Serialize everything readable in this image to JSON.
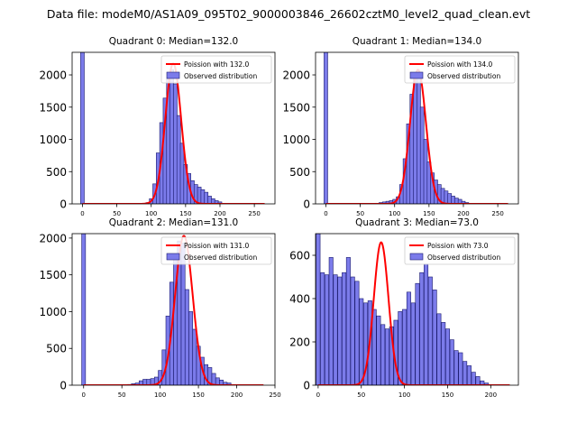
{
  "figure": {
    "suptitle": "Data file: modeM0/AS1A09_095T02_9000003846_26602cztM0_level2_quad_clean.evt"
  },
  "colors": {
    "histogram_fill": "#7b7bea",
    "histogram_edge": "#1a1a6e",
    "poisson_line": "#ff0000"
  },
  "chart_data": [
    {
      "type": "bar",
      "title": "Quadrant 0: Median=132.0",
      "xlim": [
        -15,
        280
      ],
      "ylim": [
        0,
        2350
      ],
      "xticks": [
        0,
        50,
        100,
        150,
        200,
        250
      ],
      "yticks": [
        0,
        500,
        1000,
        1500,
        2000
      ],
      "bin_width": 5.3,
      "bins": [
        {
          "x": 0,
          "y": 2350
        },
        {
          "x": 95,
          "y": 20
        },
        {
          "x": 100,
          "y": 80
        },
        {
          "x": 105,
          "y": 310
        },
        {
          "x": 110,
          "y": 790
        },
        {
          "x": 115,
          "y": 1260
        },
        {
          "x": 120,
          "y": 1640
        },
        {
          "x": 125,
          "y": 1940
        },
        {
          "x": 130,
          "y": 2080
        },
        {
          "x": 135,
          "y": 1860
        },
        {
          "x": 140,
          "y": 1370
        },
        {
          "x": 145,
          "y": 940
        },
        {
          "x": 150,
          "y": 610
        },
        {
          "x": 155,
          "y": 470
        },
        {
          "x": 160,
          "y": 360
        },
        {
          "x": 165,
          "y": 300
        },
        {
          "x": 170,
          "y": 260
        },
        {
          "x": 175,
          "y": 220
        },
        {
          "x": 180,
          "y": 180
        },
        {
          "x": 185,
          "y": 120
        },
        {
          "x": 190,
          "y": 80
        },
        {
          "x": 195,
          "y": 50
        },
        {
          "x": 200,
          "y": 30
        }
      ],
      "poisson": {
        "mean": 132.0,
        "peak": 2180,
        "x_range": [
          0,
          265
        ]
      },
      "legend": {
        "position": "upper-right",
        "entries": [
          "Poission with 132.0",
          "Observed distribution"
        ]
      }
    },
    {
      "type": "bar",
      "title": "Quadrant 1: Median=134.0",
      "xlim": [
        -15,
        280
      ],
      "ylim": [
        0,
        2350
      ],
      "xticks": [
        0,
        50,
        100,
        150,
        200,
        250
      ],
      "yticks": [
        0,
        500,
        1000,
        1500,
        2000
      ],
      "bin_width": 5.3,
      "bins": [
        {
          "x": 0,
          "y": 2350
        },
        {
          "x": 75,
          "y": 10
        },
        {
          "x": 80,
          "y": 20
        },
        {
          "x": 85,
          "y": 30
        },
        {
          "x": 90,
          "y": 40
        },
        {
          "x": 95,
          "y": 50
        },
        {
          "x": 100,
          "y": 70
        },
        {
          "x": 105,
          "y": 110
        },
        {
          "x": 110,
          "y": 300
        },
        {
          "x": 115,
          "y": 700
        },
        {
          "x": 120,
          "y": 1240
        },
        {
          "x": 125,
          "y": 1700
        },
        {
          "x": 130,
          "y": 2000
        },
        {
          "x": 135,
          "y": 1960
        },
        {
          "x": 140,
          "y": 1500
        },
        {
          "x": 145,
          "y": 1000
        },
        {
          "x": 150,
          "y": 650
        },
        {
          "x": 155,
          "y": 480
        },
        {
          "x": 160,
          "y": 370
        },
        {
          "x": 165,
          "y": 300
        },
        {
          "x": 170,
          "y": 240
        },
        {
          "x": 175,
          "y": 200
        },
        {
          "x": 180,
          "y": 160
        },
        {
          "x": 185,
          "y": 120
        },
        {
          "x": 190,
          "y": 90
        },
        {
          "x": 195,
          "y": 70
        },
        {
          "x": 200,
          "y": 40
        },
        {
          "x": 205,
          "y": 20
        }
      ],
      "poisson": {
        "mean": 134.0,
        "peak": 2080,
        "x_range": [
          0,
          265
        ]
      },
      "legend": {
        "position": "upper-right",
        "entries": [
          "Poission with 134.0",
          "Observed distribution"
        ]
      }
    },
    {
      "type": "bar",
      "title": "Quadrant 2: Median=131.0",
      "xlim": [
        -15,
        250
      ],
      "ylim": [
        0,
        2060
      ],
      "xticks": [
        0,
        50,
        100,
        150,
        200,
        250
      ],
      "yticks": [
        0,
        500,
        1000,
        1500,
        2000
      ],
      "bin_width": 5.0,
      "bins": [
        {
          "x": 0,
          "y": 2060
        },
        {
          "x": 60,
          "y": 10
        },
        {
          "x": 65,
          "y": 20
        },
        {
          "x": 70,
          "y": 30
        },
        {
          "x": 75,
          "y": 60
        },
        {
          "x": 80,
          "y": 80
        },
        {
          "x": 85,
          "y": 80
        },
        {
          "x": 90,
          "y": 90
        },
        {
          "x": 95,
          "y": 110
        },
        {
          "x": 100,
          "y": 200
        },
        {
          "x": 105,
          "y": 480
        },
        {
          "x": 110,
          "y": 940
        },
        {
          "x": 115,
          "y": 1400
        },
        {
          "x": 120,
          "y": 1720
        },
        {
          "x": 125,
          "y": 1960
        },
        {
          "x": 130,
          "y": 1930
        },
        {
          "x": 135,
          "y": 1300
        },
        {
          "x": 140,
          "y": 1000
        },
        {
          "x": 145,
          "y": 760
        },
        {
          "x": 150,
          "y": 530
        },
        {
          "x": 155,
          "y": 380
        },
        {
          "x": 160,
          "y": 280
        },
        {
          "x": 165,
          "y": 240
        },
        {
          "x": 170,
          "y": 160
        },
        {
          "x": 175,
          "y": 100
        },
        {
          "x": 180,
          "y": 70
        },
        {
          "x": 185,
          "y": 40
        },
        {
          "x": 190,
          "y": 30
        }
      ],
      "poisson": {
        "mean": 131.0,
        "peak": 2030,
        "x_range": [
          0,
          235
        ]
      },
      "legend": {
        "position": "upper-right",
        "entries": [
          "Poission with 131.0",
          "Observed distribution"
        ]
      }
    },
    {
      "type": "bar",
      "title": "Quadrant 3: Median=73.0",
      "xlim": [
        -3,
        232
      ],
      "ylim": [
        0,
        700
      ],
      "xticks": [
        0,
        50,
        100,
        150,
        200
      ],
      "yticks": [
        0,
        200,
        400,
        600
      ],
      "bin_width": 4.6,
      "bins": [
        {
          "x": 0,
          "y": 700
        },
        {
          "x": 5,
          "y": 520
        },
        {
          "x": 10,
          "y": 510
        },
        {
          "x": 15,
          "y": 590
        },
        {
          "x": 20,
          "y": 510
        },
        {
          "x": 25,
          "y": 500
        },
        {
          "x": 30,
          "y": 520
        },
        {
          "x": 35,
          "y": 590
        },
        {
          "x": 40,
          "y": 500
        },
        {
          "x": 45,
          "y": 480
        },
        {
          "x": 50,
          "y": 400
        },
        {
          "x": 55,
          "y": 380
        },
        {
          "x": 60,
          "y": 390
        },
        {
          "x": 65,
          "y": 350
        },
        {
          "x": 70,
          "y": 320
        },
        {
          "x": 75,
          "y": 280
        },
        {
          "x": 80,
          "y": 260
        },
        {
          "x": 85,
          "y": 270
        },
        {
          "x": 90,
          "y": 300
        },
        {
          "x": 95,
          "y": 340
        },
        {
          "x": 100,
          "y": 350
        },
        {
          "x": 105,
          "y": 430
        },
        {
          "x": 110,
          "y": 380
        },
        {
          "x": 115,
          "y": 470
        },
        {
          "x": 120,
          "y": 520
        },
        {
          "x": 125,
          "y": 560
        },
        {
          "x": 130,
          "y": 500
        },
        {
          "x": 135,
          "y": 440
        },
        {
          "x": 140,
          "y": 330
        },
        {
          "x": 145,
          "y": 290
        },
        {
          "x": 150,
          "y": 260
        },
        {
          "x": 155,
          "y": 210
        },
        {
          "x": 160,
          "y": 160
        },
        {
          "x": 165,
          "y": 150
        },
        {
          "x": 170,
          "y": 110
        },
        {
          "x": 175,
          "y": 90
        },
        {
          "x": 180,
          "y": 60
        },
        {
          "x": 185,
          "y": 40
        },
        {
          "x": 190,
          "y": 20
        },
        {
          "x": 195,
          "y": 10
        }
      ],
      "poisson": {
        "mean": 73.0,
        "peak": 660,
        "x_range": [
          0,
          222
        ]
      },
      "legend": {
        "position": "upper-right",
        "entries": [
          "Poission with 73.0",
          "Observed distribution"
        ]
      }
    }
  ]
}
